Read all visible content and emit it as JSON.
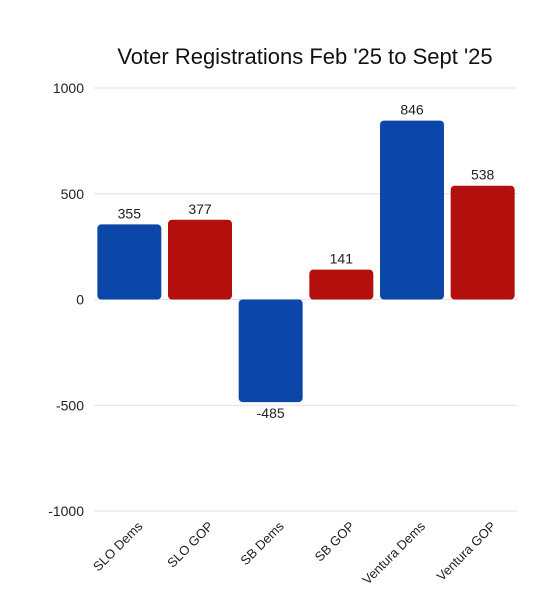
{
  "chart_data": {
    "type": "bar",
    "title": "Voter Registrations Feb '25 to Sept '25",
    "xlabel": "",
    "ylabel": "",
    "ylim": [
      -1000,
      1000
    ],
    "yticks": [
      1000,
      500,
      0,
      -500,
      -1000
    ],
    "yticklabels": [
      "1000",
      "500",
      "0",
      "-500",
      "-1000"
    ],
    "grid": true,
    "categories": [
      "SLO Dems",
      "SLO GOP",
      "SB Dems",
      "SB GOP",
      "Ventura Dems",
      "Ventura GOP"
    ],
    "values": [
      355,
      377,
      -485,
      141,
      846,
      538
    ],
    "data_labels": [
      "355",
      "377",
      "-485",
      "141",
      "846",
      "538"
    ],
    "bar_colors": [
      "#0a47a9",
      "#b30f0c",
      "#0a47a9",
      "#b30f0c",
      "#0a47a9",
      "#b30f0c"
    ]
  }
}
